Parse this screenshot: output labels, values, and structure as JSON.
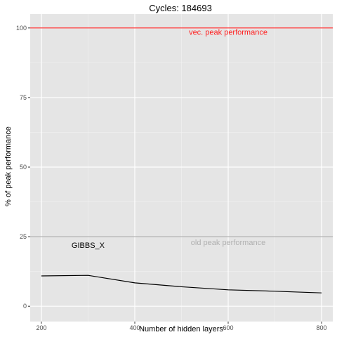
{
  "chart_data": {
    "type": "line",
    "title": "Cycles:  184693",
    "xlabel": "Number of hidden layers",
    "ylabel": "% of peak performance",
    "xlim": [
      176,
      824
    ],
    "ylim": [
      -5.5,
      105
    ],
    "x_ticks": [
      200,
      400,
      600,
      800
    ],
    "x_ticks_minor": [
      300,
      500,
      700
    ],
    "y_ticks": [
      0,
      25,
      50,
      75,
      100
    ],
    "y_ticks_minor": [
      12.5,
      37.5,
      62.5,
      87.5
    ],
    "grid": true,
    "legend": "none",
    "series": [
      {
        "name": "GIBBS_X",
        "color": "#000000",
        "x": [
          200,
          300,
          400,
          500,
          600,
          700,
          800
        ],
        "y": [
          10.9,
          11.1,
          8.4,
          7.0,
          5.9,
          5.4,
          4.8
        ]
      }
    ],
    "reference_lines": [
      {
        "y": 100,
        "label": "vec. peak performance",
        "color": "#ff2020"
      },
      {
        "y": 25,
        "label": "old peak performance",
        "color": "#b0b0b0"
      }
    ],
    "annotations": [
      {
        "text": "GIBBS_X",
        "x": 300,
        "y": 21,
        "color": "#000000"
      },
      {
        "text": "vec. peak performance",
        "x": 600,
        "y": 97.5,
        "color": "#ff2020"
      },
      {
        "text": "old peak performance",
        "x": 600,
        "y": 22,
        "color": "#b0b0b0"
      }
    ]
  }
}
